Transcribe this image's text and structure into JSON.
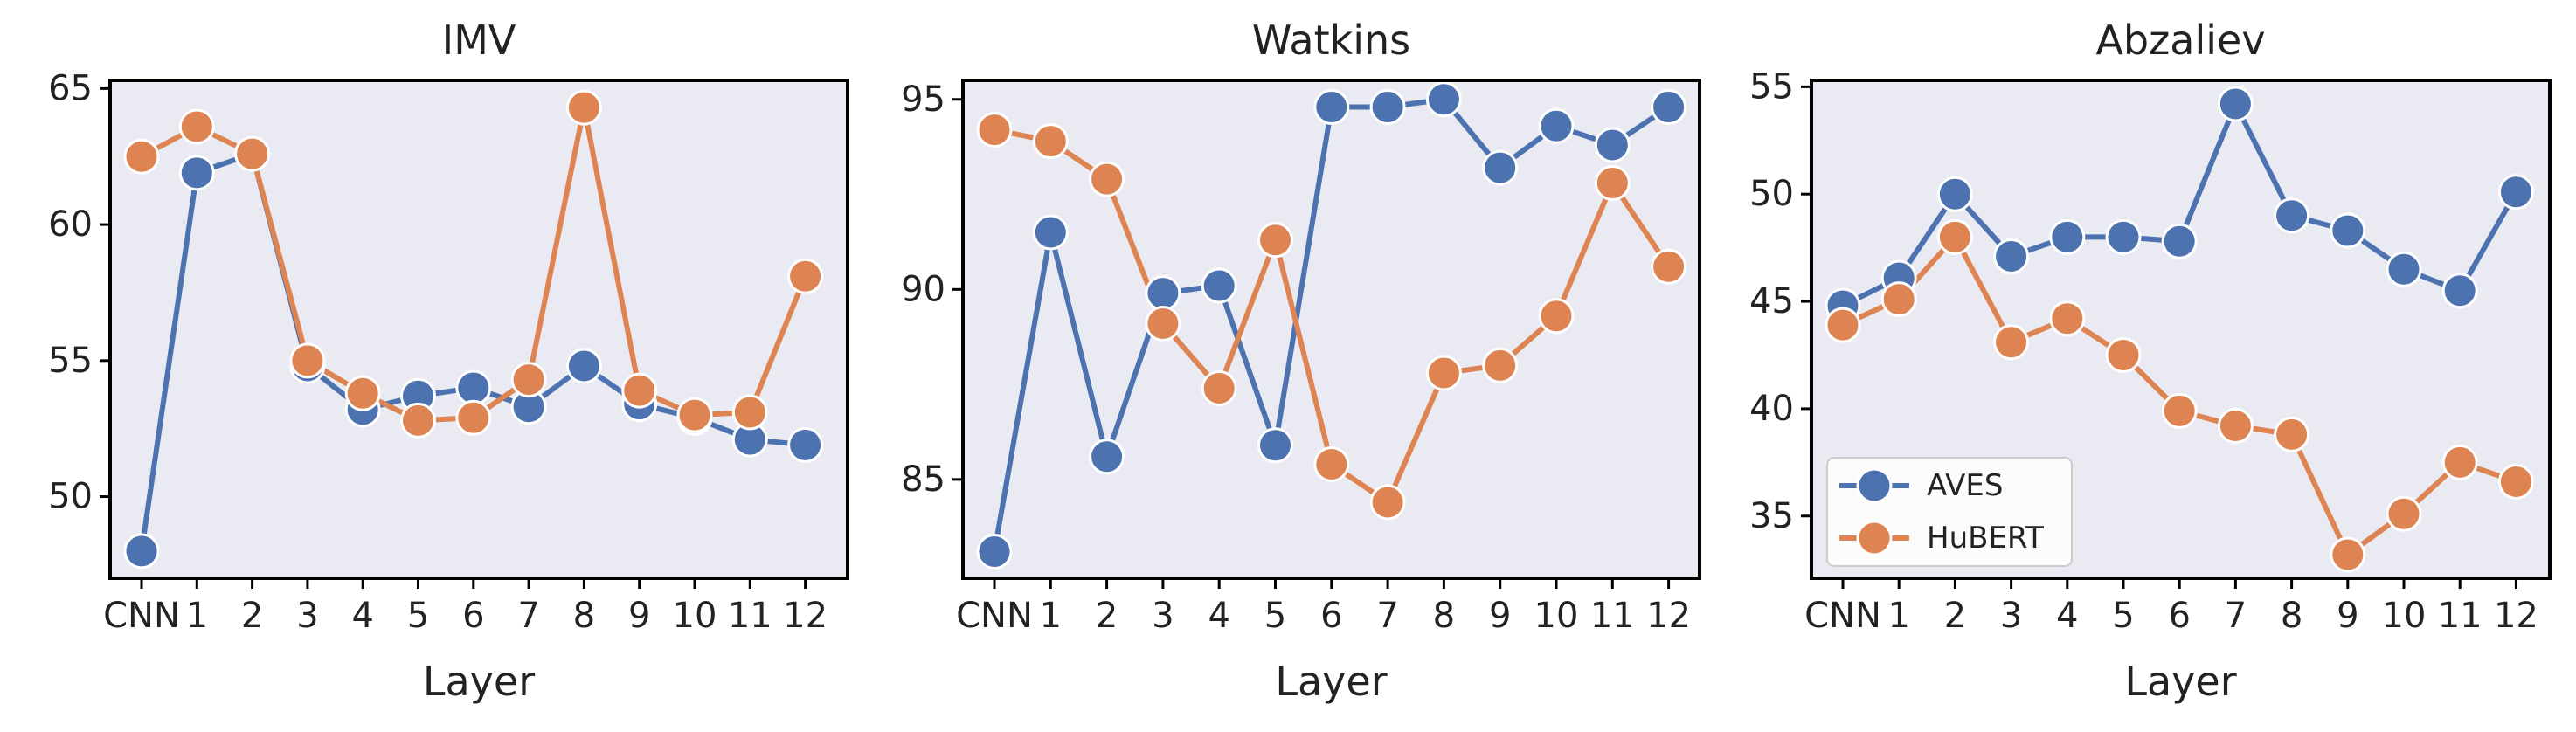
{
  "figure": {
    "background": "#ffffff",
    "plot_background": "#eaeaf2",
    "frame_color": "#000000"
  },
  "series_styles": [
    {
      "name": "AVES",
      "color": "#4c72b0",
      "marker": "circle"
    },
    {
      "name": "HuBERT",
      "color": "#dd8452",
      "marker": "circle"
    }
  ],
  "chart_data": [
    {
      "type": "line",
      "title": "IMV",
      "xlabel": "Layer",
      "ylabel": "",
      "categories": [
        "CNN",
        "1",
        "2",
        "3",
        "4",
        "5",
        "6",
        "7",
        "8",
        "9",
        "10",
        "11",
        "12"
      ],
      "ylim": [
        47,
        65.3
      ],
      "yticks": [
        50,
        55,
        60,
        65
      ],
      "grid": false,
      "legend": null,
      "series": [
        {
          "name": "AVES",
          "values": [
            48.0,
            61.9,
            62.6,
            54.8,
            53.2,
            53.7,
            54.0,
            53.3,
            54.8,
            53.4,
            52.9,
            52.1,
            51.9
          ]
        },
        {
          "name": "HuBERT",
          "values": [
            62.5,
            63.6,
            62.6,
            55.0,
            53.8,
            52.8,
            52.9,
            54.3,
            64.3,
            53.9,
            53.0,
            53.1,
            58.1
          ]
        }
      ]
    },
    {
      "type": "line",
      "title": "Watkins",
      "xlabel": "Layer",
      "ylabel": "",
      "categories": [
        "CNN",
        "1",
        "2",
        "3",
        "4",
        "5",
        "6",
        "7",
        "8",
        "9",
        "10",
        "11",
        "12"
      ],
      "ylim": [
        82.4,
        95.5
      ],
      "yticks": [
        85,
        90,
        95
      ],
      "grid": false,
      "legend": null,
      "series": [
        {
          "name": "AVES",
          "values": [
            83.1,
            91.5,
            85.6,
            89.9,
            90.1,
            85.9,
            94.8,
            94.8,
            95.0,
            93.2,
            94.3,
            93.8,
            94.8
          ]
        },
        {
          "name": "HuBERT",
          "values": [
            94.2,
            93.9,
            92.9,
            89.1,
            87.4,
            91.3,
            85.4,
            84.4,
            87.8,
            88.0,
            89.3,
            92.8,
            90.6
          ]
        }
      ]
    },
    {
      "type": "line",
      "title": "Abzaliev",
      "xlabel": "Layer",
      "ylabel": "",
      "categories": [
        "CNN",
        "1",
        "2",
        "3",
        "4",
        "5",
        "6",
        "7",
        "8",
        "9",
        "10",
        "11",
        "12"
      ],
      "ylim": [
        32.1,
        55.3
      ],
      "yticks": [
        35,
        40,
        45,
        50,
        55
      ],
      "grid": false,
      "legend": "lower-left",
      "series": [
        {
          "name": "AVES",
          "values": [
            44.8,
            46.1,
            50.0,
            47.1,
            48.0,
            48.0,
            47.8,
            54.2,
            49.0,
            48.3,
            46.5,
            45.5,
            50.1
          ]
        },
        {
          "name": "HuBERT",
          "values": [
            43.9,
            45.1,
            48.0,
            43.1,
            44.2,
            42.5,
            39.9,
            39.2,
            38.8,
            33.2,
            35.1,
            37.5,
            36.6
          ]
        }
      ]
    }
  ]
}
